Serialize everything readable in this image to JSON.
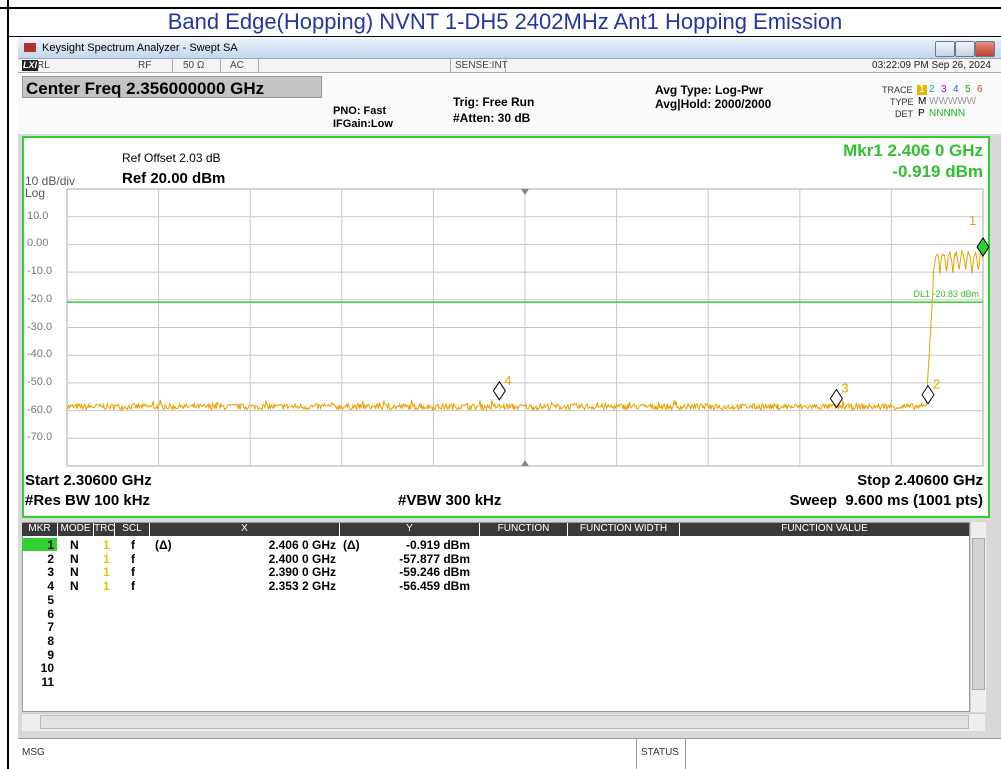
{
  "title": "Band Edge(Hopping) NVNT 1-DH5 2402MHz Ant1 Hopping Emission",
  "window": {
    "title": "Keysight Spectrum Analyzer - Swept SA"
  },
  "status_row": {
    "lxi": "LXI",
    "rl": "RL",
    "rf": "RF",
    "impedance": "50 Ω",
    "coupling": "AC",
    "sense": "SENSE:INT",
    "datetime": "03:22:09 PM Sep 26, 2024"
  },
  "settings": {
    "center_freq": "Center Freq 2.356000000 GHz",
    "pno": "PNO: Fast",
    "ifgain": "IFGain:Low",
    "trig": "Trig: Free Run",
    "atten": "#Atten: 30 dB",
    "avg_type": "Avg Type: Log-Pwr",
    "avg_hold": "Avg|Hold: 2000/2000",
    "trace_label": "TRACE",
    "trace_numbers": [
      "1",
      "2",
      "3",
      "4",
      "5",
      "6"
    ],
    "type_label": "TYPE",
    "type_values": [
      "M",
      "WWWWW"
    ],
    "det_label": "DET",
    "det_values": [
      "P",
      "NNNNN"
    ]
  },
  "plot": {
    "ref_offset": "Ref Offset 2.03 dB",
    "scale": "10 dB/div",
    "ref_level": "Ref 20.00 dBm",
    "log": "Log",
    "marker_freq": "Mkr1 2.406 0 GHz",
    "marker_level": "-0.919 dBm",
    "y_labels": [
      "10.0",
      "0.00",
      "-10.0",
      "-20.0",
      "-30.0",
      "-40.0",
      "-50.0",
      "-60.0",
      "-70.0"
    ],
    "display_line": "DL1 -20.83 dBm",
    "markers": [
      "1",
      "2",
      "3",
      "4"
    ],
    "start": "Start 2.30600 GHz",
    "stop": "Stop 2.40600 GHz",
    "rbw": "#Res BW 100 kHz",
    "vbw": "#VBW 300 kHz",
    "sweep": "Sweep  9.600 ms (1001 pts)"
  },
  "marker_table": {
    "headers": [
      "MKR",
      "MODE",
      "TRC",
      "SCL",
      "X",
      "Y",
      "FUNCTION",
      "FUNCTION WIDTH",
      "FUNCTION VALUE"
    ],
    "rows": [
      {
        "mkr": "1",
        "mode": "N",
        "trc": "1",
        "scl": "f",
        "x_ref": "(Δ)",
        "x": "2.406 0 GHz",
        "y_ref": "(Δ)",
        "y": "-0.919 dBm"
      },
      {
        "mkr": "2",
        "mode": "N",
        "trc": "1",
        "scl": "f",
        "x": "2.400 0 GHz",
        "y": "-57.877 dBm"
      },
      {
        "mkr": "3",
        "mode": "N",
        "trc": "1",
        "scl": "f",
        "x": "2.390 0 GHz",
        "y": "-59.246 dBm"
      },
      {
        "mkr": "4",
        "mode": "N",
        "trc": "1",
        "scl": "f",
        "x": "2.353 2 GHz",
        "y": "-56.459 dBm"
      },
      {
        "mkr": "5"
      },
      {
        "mkr": "6"
      },
      {
        "mkr": "7"
      },
      {
        "mkr": "8"
      },
      {
        "mkr": "9"
      },
      {
        "mkr": "10"
      },
      {
        "mkr": "11"
      }
    ]
  },
  "status_bar": {
    "msg": "MSG",
    "status": "STATUS"
  }
}
